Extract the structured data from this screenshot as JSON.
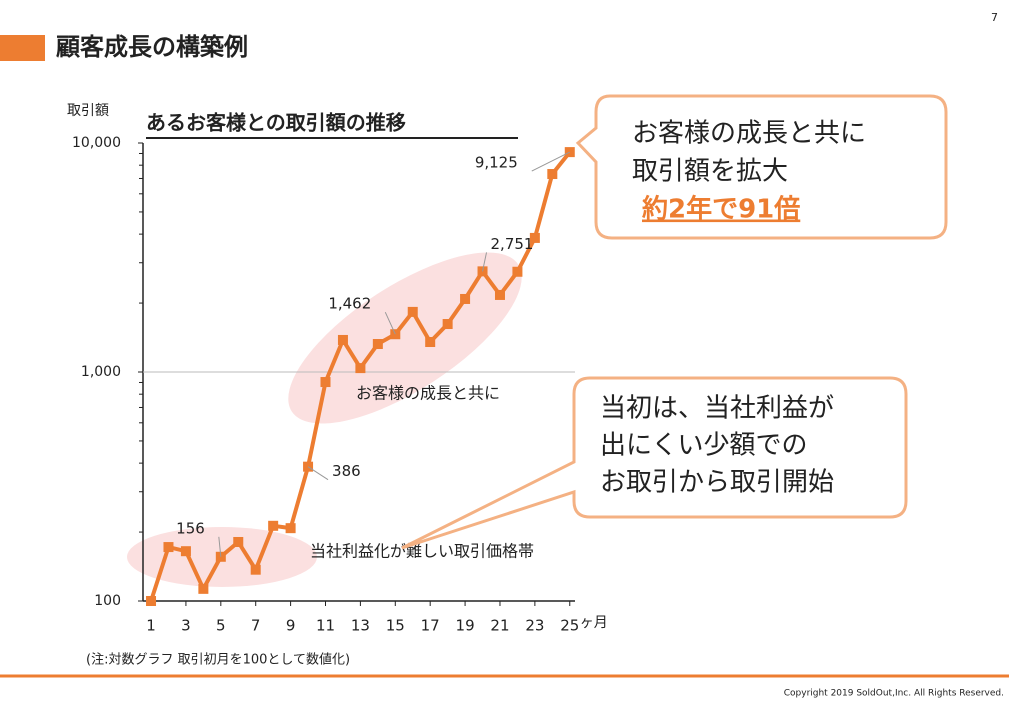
{
  "slide": {
    "title": "顧客成長の構築例",
    "page_number": "7",
    "footnote": "(注:対数グラフ 取引初月を100として数値化)",
    "copyright": "Copyright 2019 SoldOut,Inc. All Rights Reserved."
  },
  "chart_data": {
    "type": "line",
    "title": "あるお客様との取引額の推移",
    "y_label": "取引額",
    "x_unit": "ヶ月",
    "x": [
      1,
      2,
      3,
      4,
      5,
      6,
      7,
      8,
      9,
      10,
      11,
      12,
      13,
      14,
      15,
      16,
      17,
      18,
      19,
      20,
      21,
      22,
      23,
      24,
      25
    ],
    "values": [
      100,
      172,
      165,
      113,
      156,
      181,
      137,
      213,
      208,
      386,
      904,
      1380,
      1040,
      1325,
      1462,
      1830,
      1352,
      1620,
      2084,
      2751,
      2170,
      2740,
      3850,
      7320,
      9125
    ],
    "value_labels": [
      null,
      null,
      null,
      null,
      "156",
      null,
      null,
      null,
      null,
      "386",
      null,
      null,
      null,
      null,
      "1,462",
      null,
      null,
      null,
      null,
      "2,751",
      null,
      null,
      null,
      null,
      "9,125"
    ],
    "color": "#ed7d31",
    "log_scale": true,
    "grid": true,
    "xlim": [
      0.54,
      25.3
    ],
    "xticks": [
      1,
      3,
      5,
      7,
      9,
      11,
      13,
      15,
      17,
      19,
      21,
      23,
      25
    ],
    "ylim": [
      100,
      10000
    ],
    "yticks": [
      100,
      {
        "value": 1000,
        "label": "1,000"
      },
      {
        "value": 10000,
        "label": "10,000"
      }
    ],
    "yminorticks": [
      200,
      300,
      400,
      500,
      600,
      700,
      800,
      900,
      2000,
      3000,
      4000,
      5000,
      6000,
      7000,
      8000,
      9000
    ],
    "annotations": [
      "お客様の成長と共に",
      "当社利益化が難しい取引価格帯"
    ],
    "callouts": [
      {
        "lines": [
          "お客様の成長と共に",
          "取引額を拡大"
        ],
        "highlight": "約2年で91倍"
      },
      {
        "lines": [
          "当初は、当社利益が",
          "出にくい少額での",
          "お取引から取引開始"
        ]
      }
    ]
  }
}
